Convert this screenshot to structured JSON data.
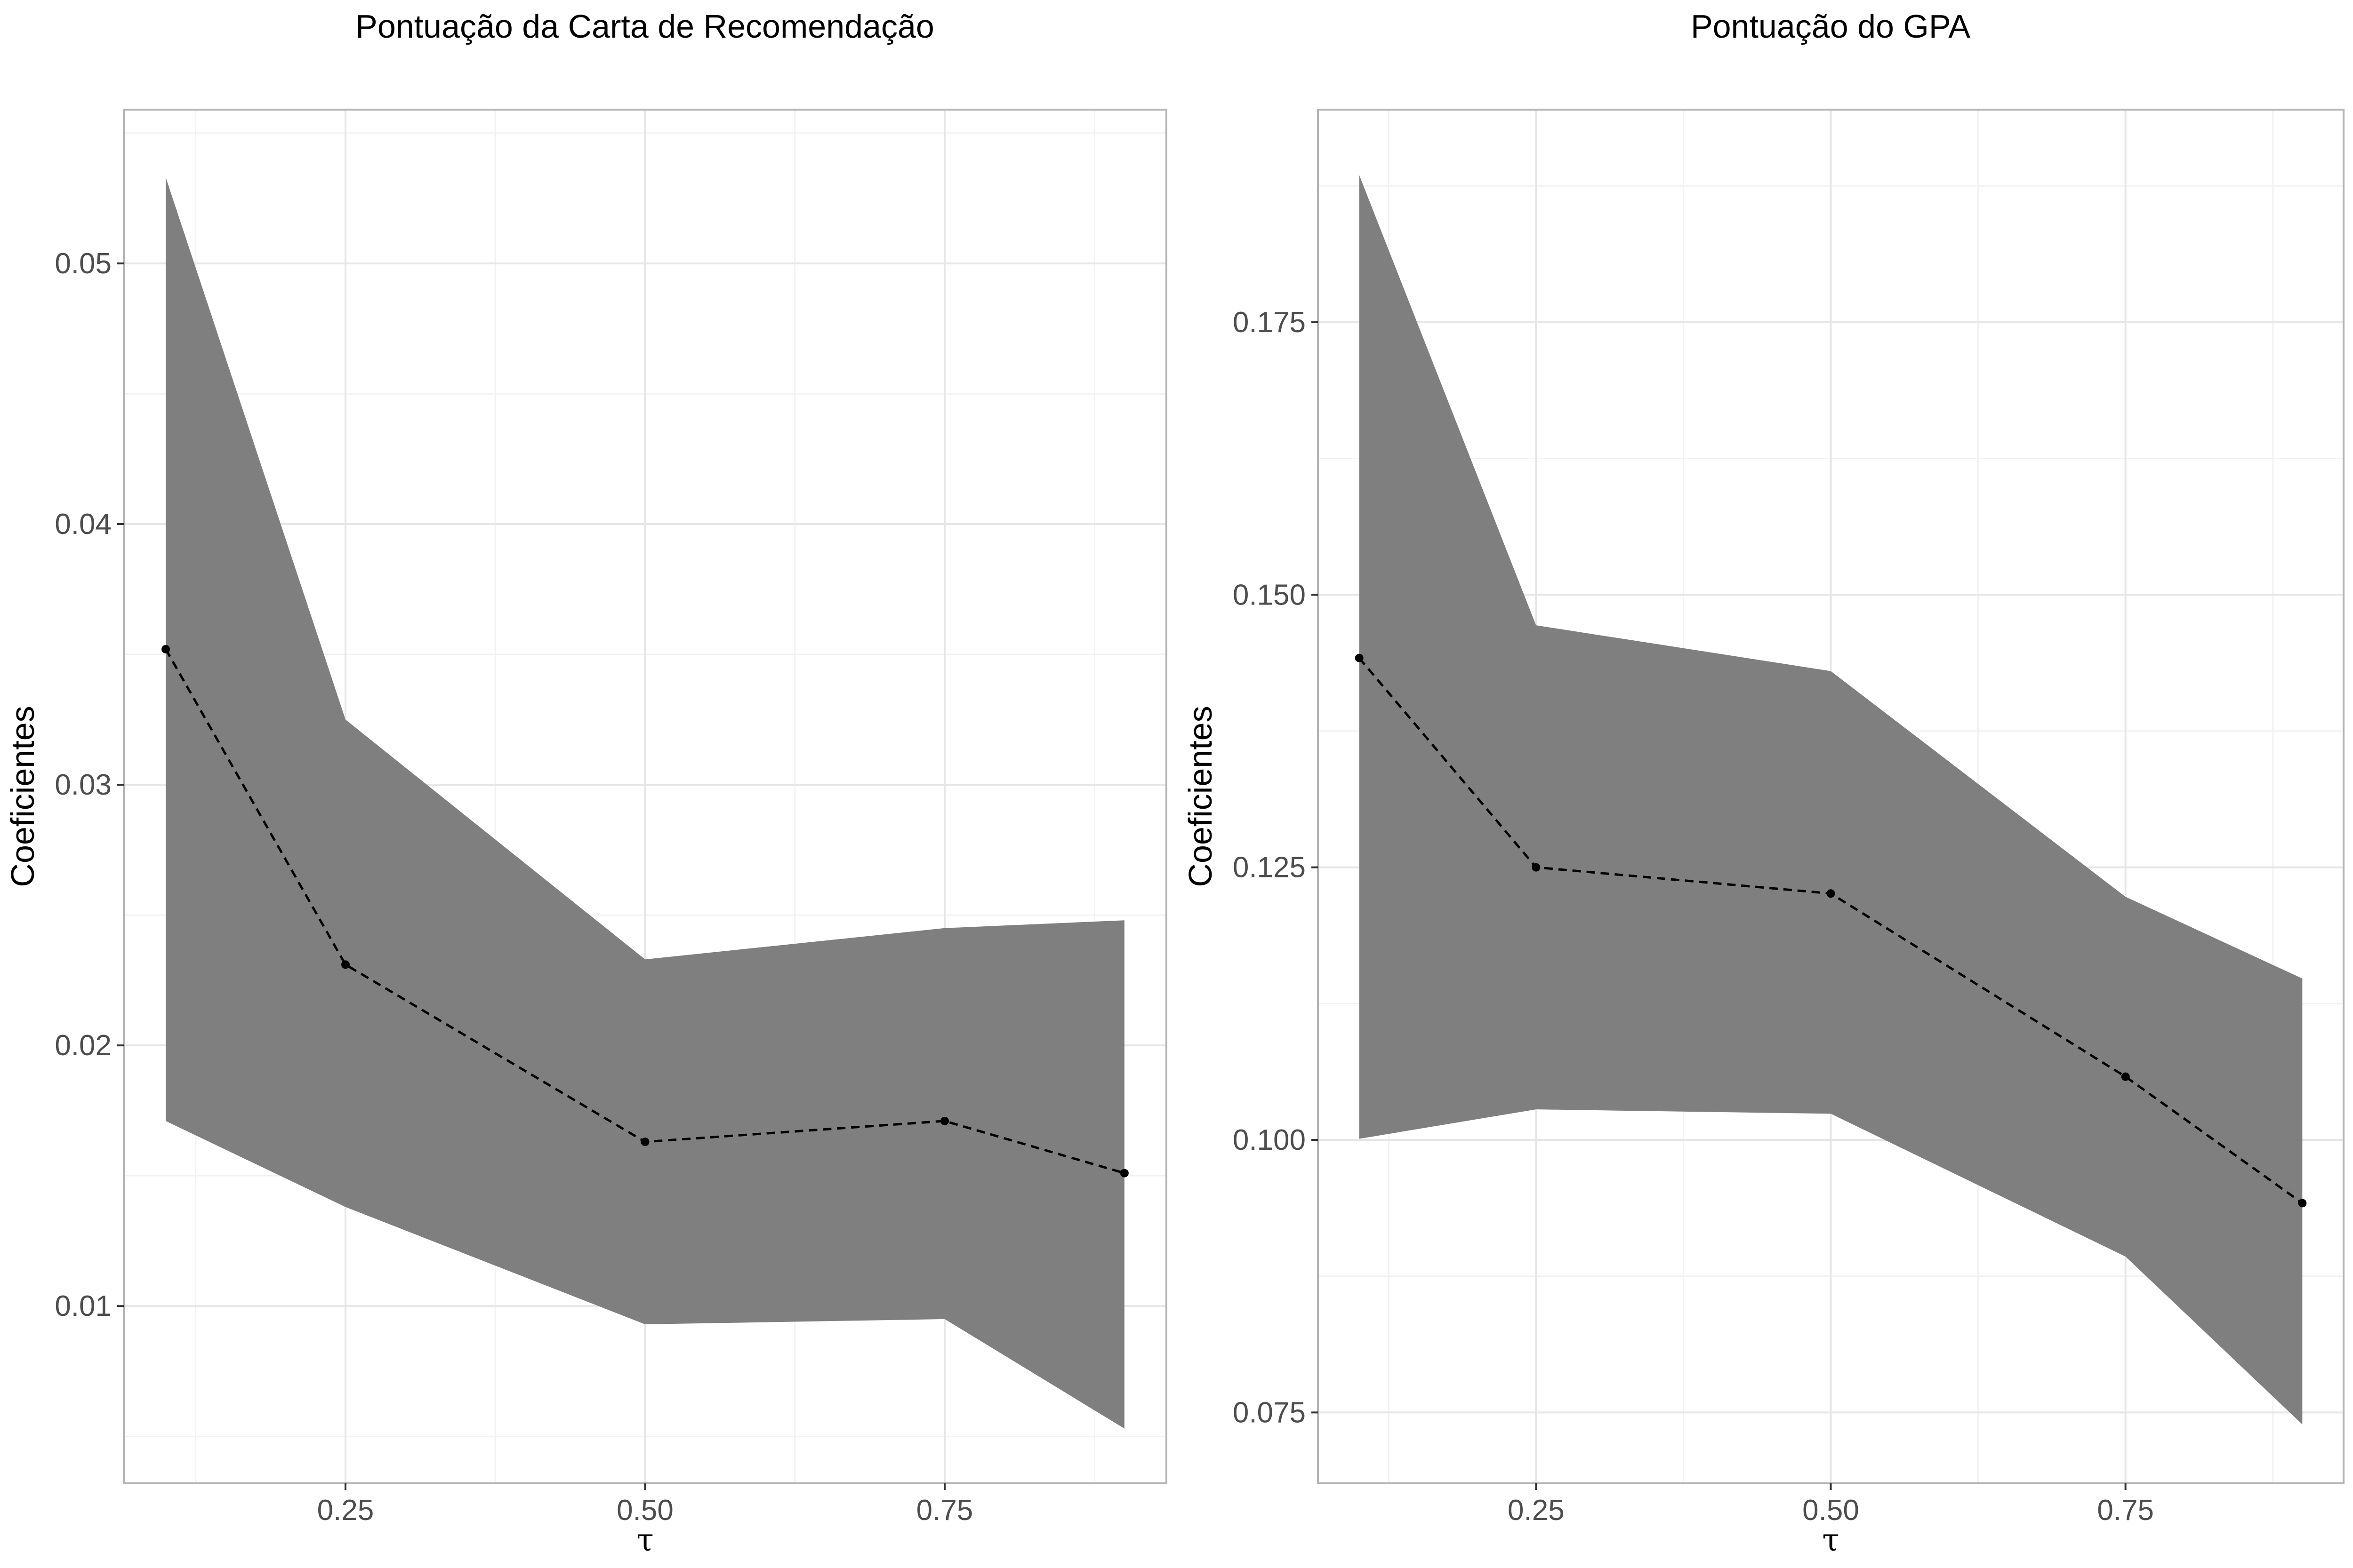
{
  "chart_data": [
    {
      "type": "line",
      "title": "Pontuação da Carta de Recomendação",
      "xlabel": "τ",
      "ylabel": "Coeficientes",
      "xlim": [
        0.065,
        0.935
      ],
      "ylim": [
        0.0032,
        0.0559
      ],
      "x_ticks": [
        0.25,
        0.5,
        0.75
      ],
      "x_tick_labels": [
        "0.25",
        "0.50",
        "0.75"
      ],
      "y_ticks": [
        0.01,
        0.02,
        0.03,
        0.04,
        0.05
      ],
      "y_tick_labels": [
        "0.01",
        "0.02",
        "0.03",
        "0.04",
        "0.05"
      ],
      "grid": true,
      "series": [
        {
          "x": [
            0.1,
            0.25,
            0.5,
            0.75,
            0.9
          ],
          "values": [
            0.0352,
            0.0231,
            0.0163,
            0.0171,
            0.0151
          ],
          "lower": [
            0.0171,
            0.0138,
            0.0093,
            0.0095,
            0.0053
          ],
          "upper": [
            0.0533,
            0.0325,
            0.0233,
            0.0245,
            0.0248
          ]
        }
      ],
      "colors": {
        "band": "#7f7f7f",
        "line": "#000000"
      }
    },
    {
      "type": "line",
      "title": "Pontuação do GPA",
      "xlabel": "τ",
      "ylabel": "Coeficientes",
      "xlim": [
        0.065,
        0.935
      ],
      "ylim": [
        0.0685,
        0.1945
      ],
      "x_ticks": [
        0.25,
        0.5,
        0.75
      ],
      "x_tick_labels": [
        "0.25",
        "0.50",
        "0.75"
      ],
      "y_ticks": [
        0.075,
        0.1,
        0.125,
        0.15,
        0.175
      ],
      "y_tick_labels": [
        "0.075",
        "0.100",
        "0.125",
        "0.150",
        "0.175"
      ],
      "grid": true,
      "series": [
        {
          "x": [
            0.1,
            0.25,
            0.5,
            0.75,
            0.9
          ],
          "values": [
            0.1442,
            0.125,
            0.1226,
            0.1058,
            0.0942
          ],
          "lower": [
            0.1001,
            0.1028,
            0.1024,
            0.0893,
            0.0739
          ],
          "upper": [
            0.1885,
            0.1472,
            0.143,
            0.1223,
            0.1148
          ]
        }
      ],
      "colors": {
        "band": "#7f7f7f",
        "line": "#000000"
      }
    }
  ]
}
